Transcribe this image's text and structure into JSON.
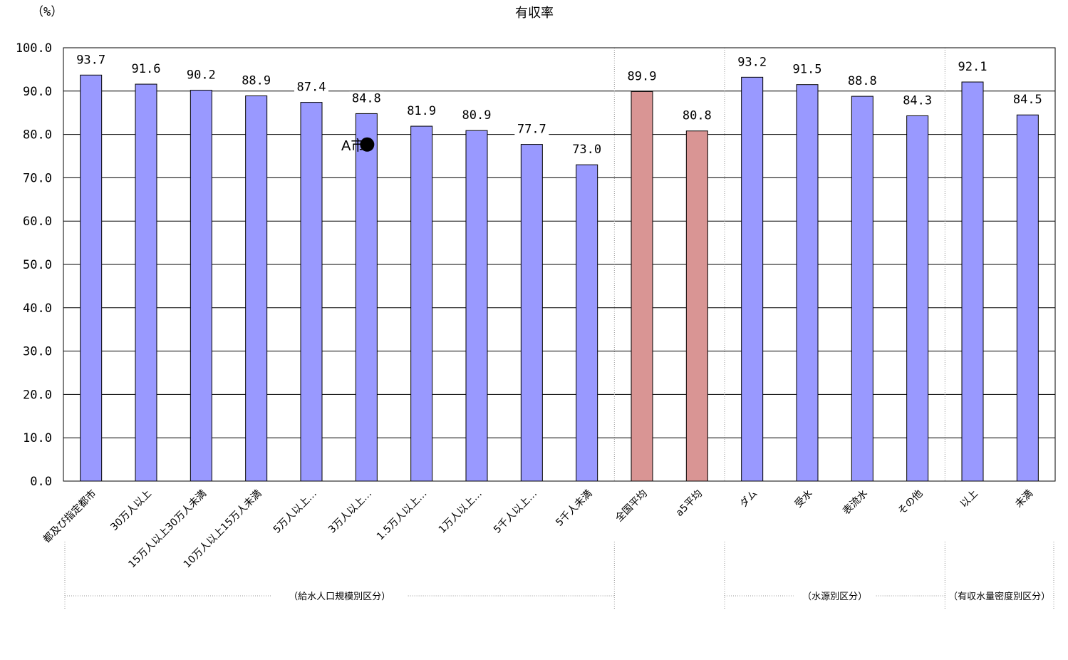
{
  "chart_data": {
    "type": "bar",
    "title": "有収率",
    "unit_label": "（%）",
    "ylim": [
      0,
      100
    ],
    "yticks": [
      "0.0",
      "10.0",
      "20.0",
      "30.0",
      "40.0",
      "50.0",
      "60.0",
      "70.0",
      "80.0",
      "90.0",
      "100.0"
    ],
    "grid": true,
    "categories": [
      "都及び指定都市",
      "30万人以上",
      "15万人以上30万人未満",
      "10万人以上15万人未満",
      "5万人以上…",
      "3万人以上…",
      "1.5万人以上…",
      "1万人以上…",
      "5千人以上…",
      "5千人未満",
      "全国平均",
      "a5平均",
      "ダム",
      "受水",
      "表流水",
      "その他",
      "以上",
      "未満"
    ],
    "values": [
      93.7,
      91.6,
      90.2,
      88.9,
      87.4,
      84.8,
      81.9,
      80.9,
      77.7,
      73.0,
      89.9,
      80.8,
      93.2,
      91.5,
      88.8,
      84.3,
      92.1,
      84.5
    ],
    "value_labels": [
      "93.7",
      "91.6",
      "90.2",
      "88.9",
      "87.4",
      "84.8",
      "81.9",
      "80.9",
      "77.7",
      "73.0",
      "89.9",
      "80.8",
      "93.2",
      "91.5",
      "88.8",
      "84.3",
      "92.1",
      "84.5"
    ],
    "bar_colors": [
      "#9999ff",
      "#9999ff",
      "#9999ff",
      "#9999ff",
      "#9999ff",
      "#9999ff",
      "#9999ff",
      "#9999ff",
      "#9999ff",
      "#9999ff",
      "#d99594",
      "#d99594",
      "#9999ff",
      "#9999ff",
      "#9999ff",
      "#9999ff",
      "#9999ff",
      "#9999ff"
    ],
    "groups": [
      "（給水人口規模別区分）",
      "（水源別区分）",
      "（有収水量密度別区分）"
    ],
    "marker": {
      "label": "A市",
      "category_index": 5,
      "value": 78.0,
      "symbol": "●"
    }
  }
}
